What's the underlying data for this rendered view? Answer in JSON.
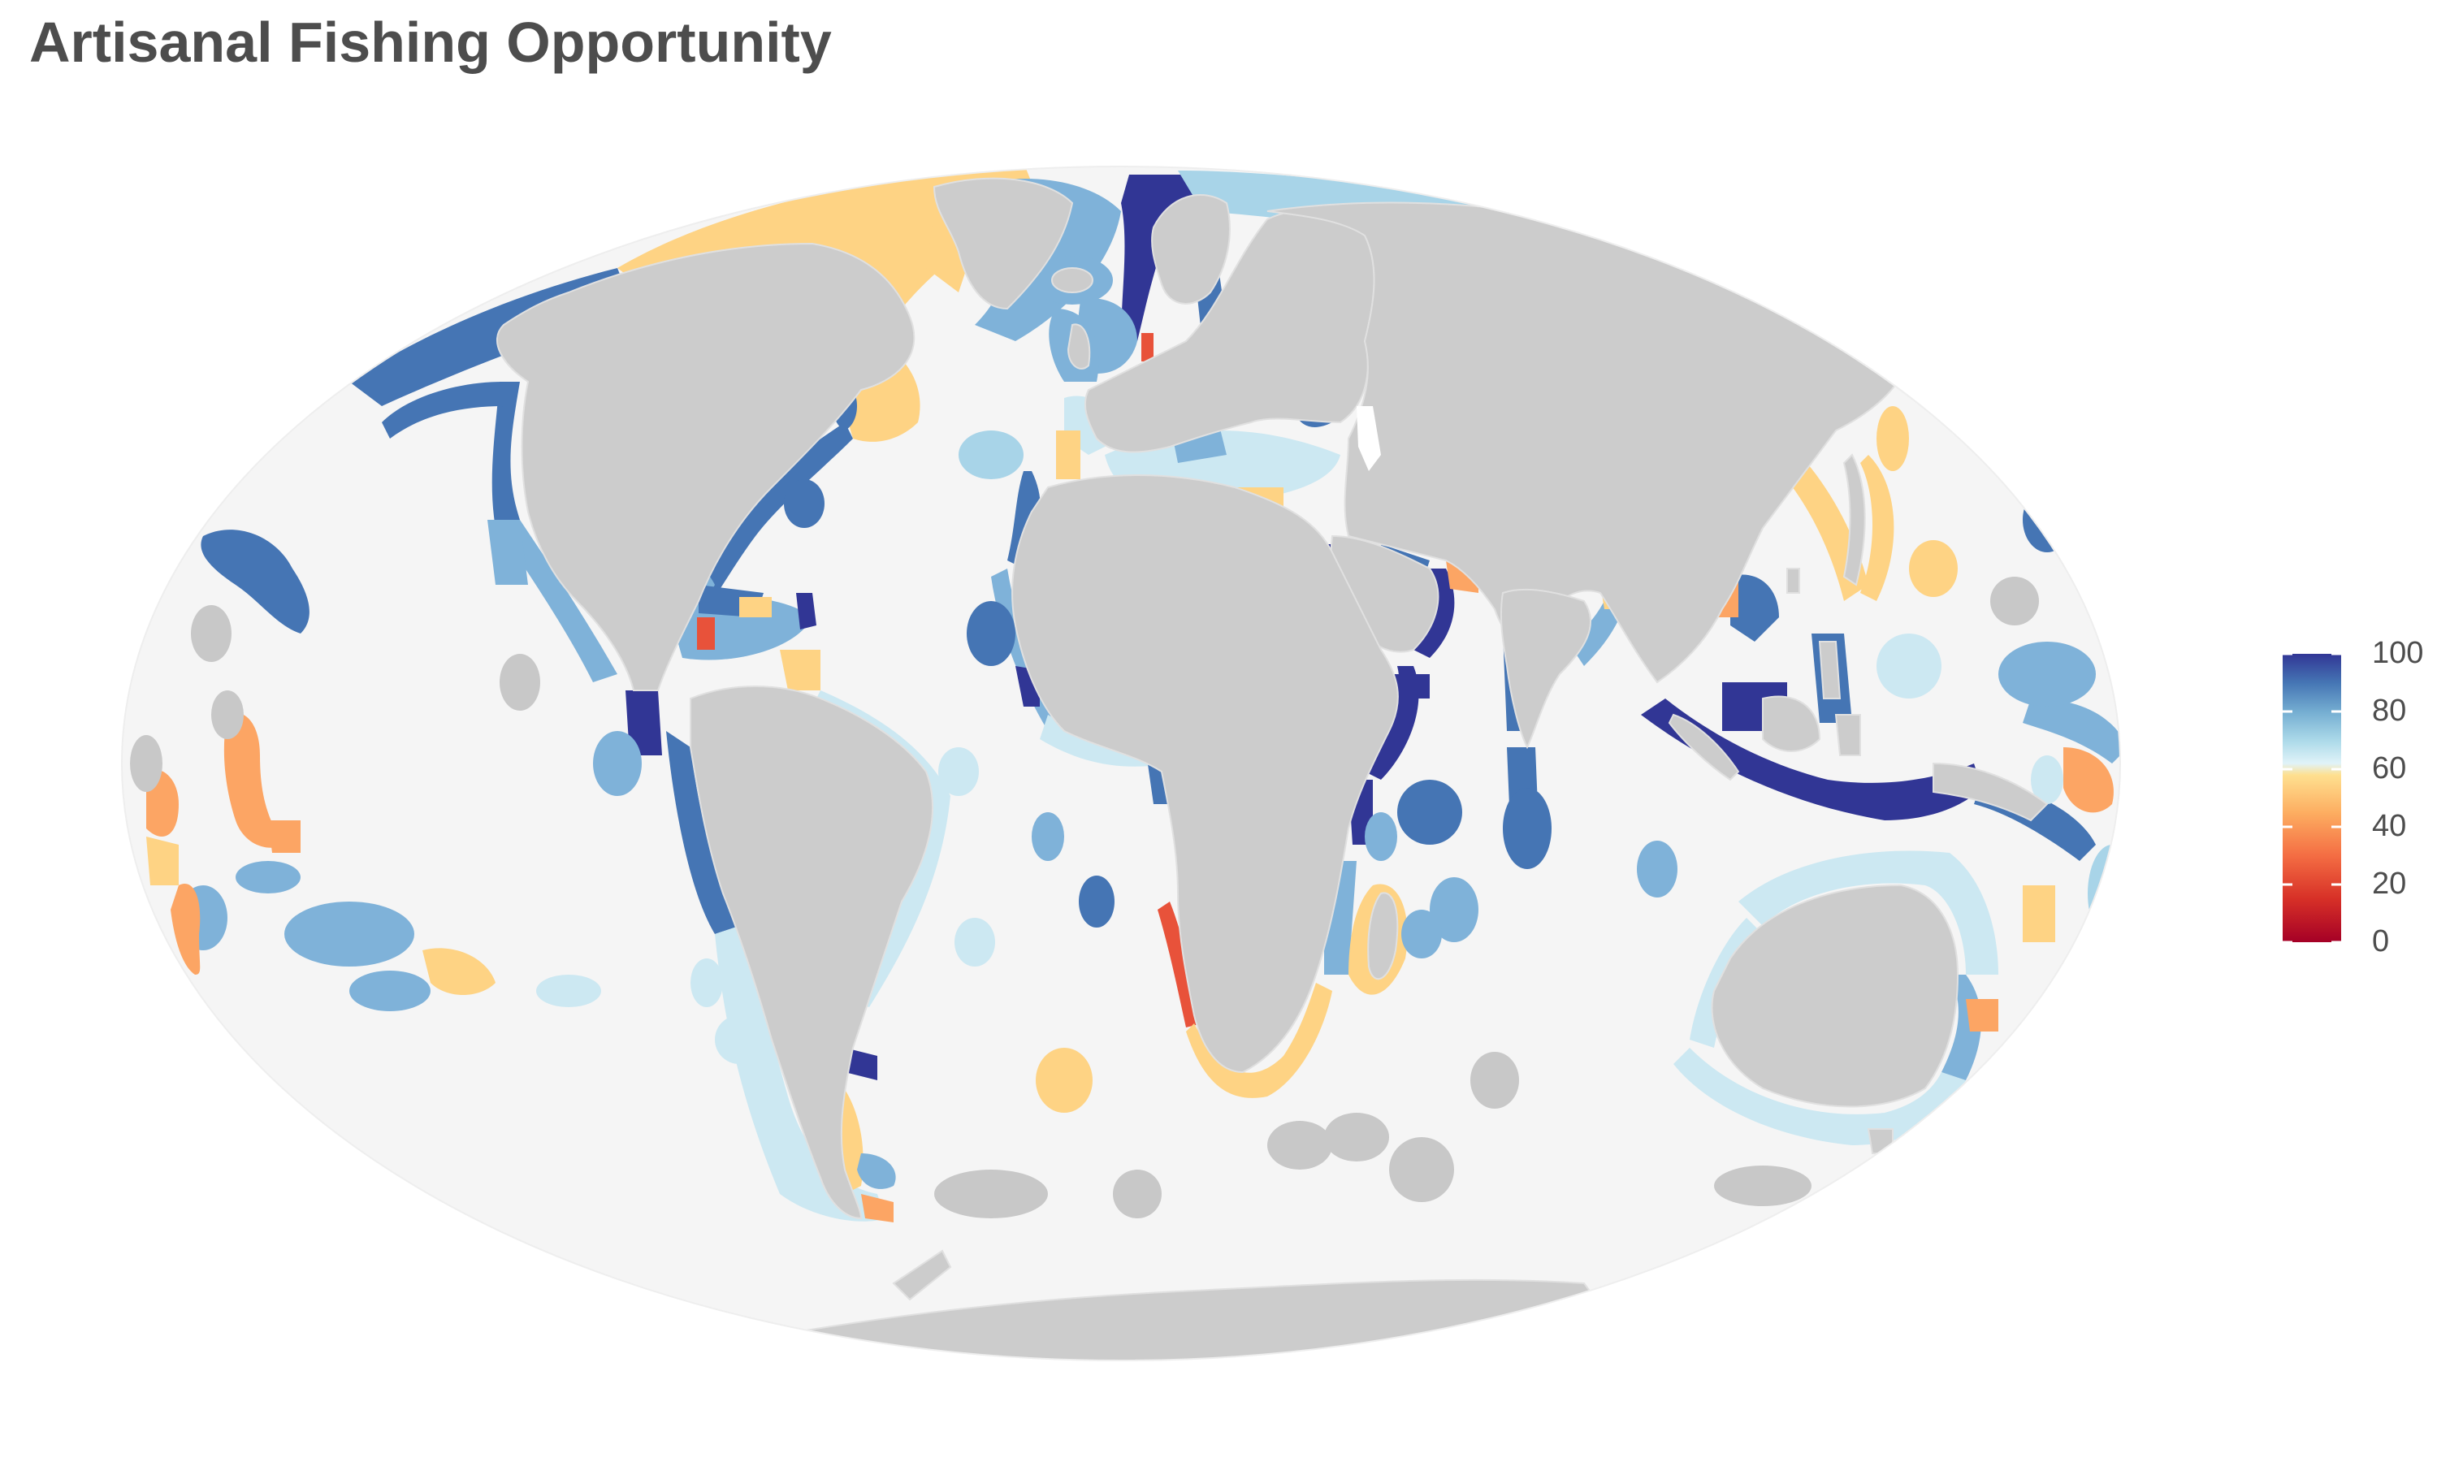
{
  "title": "Artisanal Fishing Opportunity",
  "map": {
    "projection": "Mollweide world",
    "ocean_color": "#f5f5f5",
    "land_color": "#cccccc",
    "no_data_color": "#c8c8c8",
    "border_color": "#e0e0e0"
  },
  "legend": {
    "type": "continuous color scale",
    "range": [
      0,
      100
    ],
    "ticks": [
      "100",
      "80",
      "60",
      "40",
      "20",
      "0"
    ],
    "colors": [
      "#313695",
      "#4575b4",
      "#74add1",
      "#abd9e9",
      "#e0f3f8",
      "#fee090",
      "#fdae61",
      "#f46d43",
      "#d73027",
      "#a50026"
    ]
  },
  "score_colors": {
    "very_high": "#313695",
    "high": "#4575b4",
    "mid_high": "#7fb2d9",
    "mid": "#cce8f2",
    "mid_low": "#fed384",
    "low": "#fca564",
    "very_low": "#e8523a"
  }
}
